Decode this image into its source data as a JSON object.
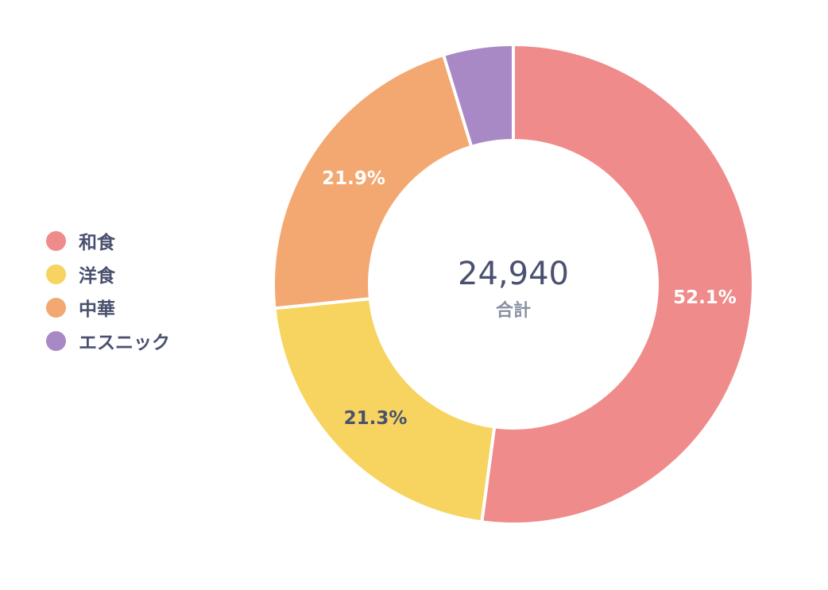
{
  "chart_data": {
    "type": "pie",
    "donut": true,
    "categories": [
      "和食",
      "洋食",
      "中華",
      "エスニック"
    ],
    "values": [
      52.1,
      21.3,
      21.9,
      4.7
    ],
    "value_labels": [
      "52.1%",
      "21.3%",
      "21.9%",
      ""
    ],
    "colors": [
      "#ef8b8a",
      "#f7d35f",
      "#f2a870",
      "#a889c5"
    ],
    "label_colors": [
      "#ffffff",
      "#4a5170",
      "#ffffff",
      "#ffffff"
    ],
    "legend_position": "left",
    "center": {
      "value": "24,940",
      "label": "合計"
    }
  }
}
